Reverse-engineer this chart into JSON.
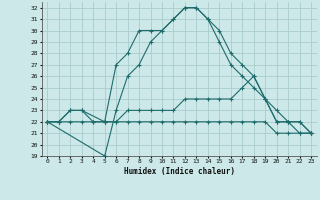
{
  "xlabel": "Humidex (Indice chaleur)",
  "bg_color": "#cce8e8",
  "grid_color": "#aacccc",
  "line_color": "#1e6b6b",
  "xlim": [
    -0.5,
    23.5
  ],
  "ylim": [
    19,
    32.5
  ],
  "yticks": [
    19,
    20,
    21,
    22,
    23,
    24,
    25,
    26,
    27,
    28,
    29,
    30,
    31,
    32
  ],
  "xticks": [
    0,
    1,
    2,
    3,
    4,
    5,
    6,
    7,
    8,
    9,
    10,
    11,
    12,
    13,
    14,
    15,
    16,
    17,
    18,
    19,
    20,
    21,
    22,
    23
  ],
  "s1_x": [
    0,
    1,
    2,
    3,
    5,
    6,
    7,
    8,
    9,
    10,
    11,
    12,
    13,
    14,
    15,
    16,
    17,
    18,
    19,
    20,
    21,
    22,
    23
  ],
  "s1_y": [
    22,
    22,
    23,
    23,
    22,
    27,
    28,
    30,
    30,
    30,
    31,
    32,
    32,
    31,
    30,
    28,
    27,
    26,
    24,
    22,
    22,
    22,
    21
  ],
  "s2_x": [
    0,
    5,
    6,
    7,
    8,
    9,
    10,
    11,
    12,
    13,
    14,
    15,
    16,
    17,
    18,
    19,
    20,
    21,
    22,
    23
  ],
  "s2_y": [
    22,
    19,
    23,
    26,
    27,
    29,
    30,
    31,
    32,
    32,
    31,
    29,
    27,
    26,
    25,
    24,
    23,
    22,
    22,
    21
  ],
  "s3_x": [
    0,
    1,
    2,
    3,
    4,
    5,
    6,
    7,
    8,
    9,
    10,
    11,
    12,
    13,
    14,
    15,
    16,
    17,
    18,
    19,
    20,
    21,
    22,
    23
  ],
  "s3_y": [
    22,
    22,
    23,
    23,
    22,
    22,
    22,
    23,
    23,
    23,
    23,
    23,
    24,
    24,
    24,
    24,
    24,
    25,
    26,
    24,
    22,
    22,
    21,
    21
  ],
  "s4_x": [
    0,
    1,
    2,
    3,
    4,
    5,
    6,
    7,
    8,
    9,
    10,
    11,
    12,
    13,
    14,
    15,
    16,
    17,
    18,
    19,
    20,
    21,
    22,
    23
  ],
  "s4_y": [
    22,
    22,
    22,
    22,
    22,
    22,
    22,
    22,
    22,
    22,
    22,
    22,
    22,
    22,
    22,
    22,
    22,
    22,
    22,
    22,
    21,
    21,
    21,
    21
  ]
}
